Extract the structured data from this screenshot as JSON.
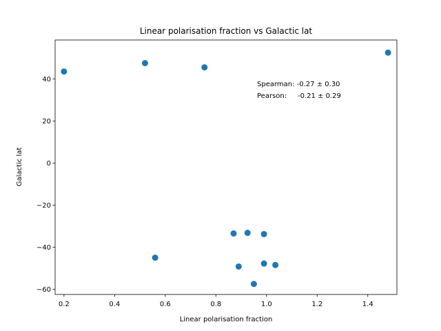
{
  "chart_data": {
    "type": "scatter",
    "title": "Linear polarisation fraction vs Galactic lat",
    "xlabel": "Linear polarisation fraction",
    "ylabel": "Galactic lat",
    "xlim": [
      0.165,
      1.515
    ],
    "ylim": [
      -62.5,
      58.5
    ],
    "xticks": [
      0.2,
      0.4,
      0.6,
      0.8,
      1.0,
      1.2,
      1.4
    ],
    "xtick_labels": [
      "0.2",
      "0.4",
      "0.6",
      "0.8",
      "1.0",
      "1.2",
      "1.4"
    ],
    "yticks": [
      -60,
      -40,
      -20,
      0,
      20,
      40
    ],
    "ytick_labels": [
      "−60",
      "−40",
      "−20",
      "0",
      "20",
      "40"
    ],
    "grid": false,
    "marker_color": "#1f77b4",
    "annotations": [
      "Spearman: -0.27 ± 0.30",
      "Pearson:     -0.21 ± 0.29"
    ],
    "points": [
      {
        "x": 0.2,
        "y": 43.5
      },
      {
        "x": 0.52,
        "y": 47.5
      },
      {
        "x": 0.755,
        "y": 45.5
      },
      {
        "x": 1.48,
        "y": 52.5
      },
      {
        "x": 0.56,
        "y": -45.0
      },
      {
        "x": 0.87,
        "y": -33.5
      },
      {
        "x": 0.925,
        "y": -33.2
      },
      {
        "x": 0.99,
        "y": -33.8
      },
      {
        "x": 0.89,
        "y": -49.2
      },
      {
        "x": 0.99,
        "y": -47.8
      },
      {
        "x": 1.035,
        "y": -48.5
      },
      {
        "x": 0.95,
        "y": -57.5
      }
    ]
  }
}
